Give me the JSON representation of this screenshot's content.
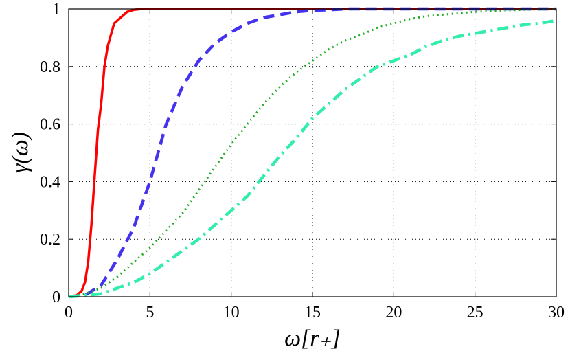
{
  "chart_data": {
    "type": "line",
    "xlabel": "ω[r₊]",
    "ylabel": "γ(ω)",
    "xlim": [
      0,
      30
    ],
    "ylim": [
      0,
      1
    ],
    "xticks": [
      0,
      5,
      10,
      15,
      20,
      25,
      30
    ],
    "yticks": [
      0,
      0.2,
      0.4,
      0.6,
      0.8,
      1
    ],
    "xtick_labels": [
      "0",
      "5",
      "10",
      "15",
      "20",
      "25",
      "30"
    ],
    "ytick_labels": [
      "0",
      "0.2",
      "0.4",
      "0.6",
      "0.8",
      "1"
    ],
    "grid": true,
    "series": [
      {
        "color": "#ff0000",
        "style": "solid",
        "x": [
          0,
          0.5,
          0.8,
          1.0,
          1.2,
          1.4,
          1.6,
          1.8,
          2.0,
          2.2,
          2.4,
          2.6,
          2.8,
          3.0,
          3.3,
          3.6,
          4.0,
          4.5,
          5.0,
          6,
          10,
          15,
          20,
          25,
          30
        ],
        "y": [
          0,
          0.005,
          0.02,
          0.05,
          0.12,
          0.25,
          0.42,
          0.58,
          0.67,
          0.8,
          0.87,
          0.91,
          0.95,
          0.96,
          0.975,
          0.99,
          0.997,
          1.0,
          1.0,
          1.0,
          1.0,
          1.0,
          1.0,
          1.0,
          1.0
        ]
      },
      {
        "color": "#4433ee",
        "style": "dashed",
        "x": [
          0,
          1,
          2,
          3,
          4,
          5,
          6,
          7,
          8,
          9,
          10,
          11,
          12,
          13,
          14,
          15,
          16,
          17,
          18,
          20,
          25,
          30
        ],
        "y": [
          0,
          0.005,
          0.04,
          0.13,
          0.24,
          0.4,
          0.6,
          0.73,
          0.82,
          0.88,
          0.92,
          0.95,
          0.97,
          0.98,
          0.99,
          0.995,
          0.997,
          1.0,
          1.0,
          1.0,
          1.0,
          1.0
        ]
      },
      {
        "color": "#22aa22",
        "style": "dotted",
        "x": [
          0,
          1,
          2,
          3,
          4,
          5,
          6,
          7,
          8,
          9,
          10,
          11,
          12,
          13,
          14,
          15,
          16,
          17,
          18,
          19,
          20,
          21,
          22,
          23,
          24,
          25,
          26,
          27,
          28,
          29,
          30
        ],
        "y": [
          0,
          0.01,
          0.03,
          0.07,
          0.12,
          0.17,
          0.23,
          0.29,
          0.37,
          0.45,
          0.53,
          0.6,
          0.67,
          0.73,
          0.78,
          0.82,
          0.86,
          0.89,
          0.91,
          0.935,
          0.95,
          0.965,
          0.975,
          0.98,
          0.985,
          0.99,
          0.993,
          0.995,
          0.997,
          0.998,
          1.0
        ]
      },
      {
        "color": "#33eeaa",
        "style": "dashdot",
        "x": [
          0,
          2,
          3,
          4,
          5,
          6,
          7,
          8,
          9,
          10,
          11,
          12,
          13,
          14,
          15,
          16,
          17,
          18,
          19,
          20,
          21,
          22,
          23,
          24,
          25,
          26,
          27,
          28,
          29,
          30
        ],
        "y": [
          0,
          0.01,
          0.03,
          0.05,
          0.08,
          0.12,
          0.16,
          0.2,
          0.25,
          0.3,
          0.35,
          0.42,
          0.49,
          0.55,
          0.62,
          0.67,
          0.72,
          0.76,
          0.8,
          0.82,
          0.84,
          0.87,
          0.89,
          0.905,
          0.915,
          0.925,
          0.935,
          0.945,
          0.95,
          0.96
        ]
      }
    ]
  }
}
